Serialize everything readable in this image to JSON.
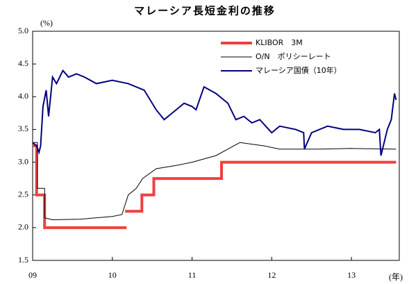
{
  "chart_data": {
    "type": "line",
    "title": "マレーシア長短金利の推移",
    "y_label": "(%)",
    "x_label": "(年)",
    "xlim": [
      2009,
      2013.6
    ],
    "xticks": [
      {
        "value": 2009,
        "label": "09"
      },
      {
        "value": 2010,
        "label": "10"
      },
      {
        "value": 2011,
        "label": "11"
      },
      {
        "value": 2012,
        "label": "12"
      },
      {
        "value": 2013,
        "label": "13"
      }
    ],
    "ylim": [
      1.5,
      5.0
    ],
    "yticks": [
      1.5,
      {
        "value": 2.0,
        "label": "2.0"
      },
      2.5,
      {
        "value": 3.0,
        "label": "3.0"
      },
      3.5,
      {
        "value": 4.0,
        "label": "4.0"
      },
      4.5,
      {
        "value": 5.0,
        "label": "5.0"
      }
    ],
    "legend": "upper right",
    "series": [
      {
        "name": "KLIBOR　3M",
        "color": "#f04040",
        "x": [
          2009.0,
          2009.05,
          2009.05,
          2009.15,
          2009.15,
          2010.18,
          null,
          2010.16,
          2010.37,
          2010.37,
          2010.52,
          2010.52,
          2011.37,
          2011.37,
          2013.56
        ],
        "values": [
          3.25,
          3.25,
          2.5,
          2.5,
          2.0,
          2.0,
          null,
          2.25,
          2.25,
          2.5,
          2.5,
          2.75,
          2.75,
          3.0,
          3.0
        ]
      },
      {
        "name": "O/N　ポリシーレート",
        "color": "#000000",
        "x": [
          2009.0,
          2009.06,
          2009.06,
          2009.15,
          2009.15,
          2009.25,
          2009.6,
          2010.0,
          2010.12,
          2010.2,
          2010.3,
          2010.38,
          2010.55,
          2010.8,
          2011.0,
          2011.3,
          2011.45,
          2011.6,
          2011.9,
          2012.1,
          2012.6,
          2013.0,
          2013.56
        ],
        "values": [
          3.3,
          3.3,
          2.6,
          2.6,
          2.15,
          2.12,
          2.13,
          2.17,
          2.2,
          2.5,
          2.6,
          2.75,
          2.9,
          2.95,
          3.0,
          3.1,
          3.2,
          3.3,
          3.25,
          3.2,
          3.2,
          3.21,
          3.2
        ]
      },
      {
        "name": "マレーシア国債（10年）",
        "color": "#000080",
        "x": [
          2009.0,
          2009.05,
          2009.08,
          2009.1,
          2009.13,
          2009.17,
          2009.2,
          2009.25,
          2009.3,
          2009.38,
          2009.45,
          2009.55,
          2009.65,
          2009.8,
          2010.0,
          2010.2,
          2010.4,
          2010.55,
          2010.65,
          2010.75,
          2010.9,
          2011.0,
          2011.05,
          2011.15,
          2011.3,
          2011.45,
          2011.55,
          2011.65,
          2011.75,
          2011.85,
          2012.0,
          2012.1,
          2012.3,
          2012.4,
          2012.41,
          2012.5,
          2012.7,
          2012.9,
          2013.1,
          2013.3,
          2013.35,
          2013.37,
          2013.45,
          2013.5,
          2013.54,
          2013.56
        ],
        "values": [
          3.3,
          3.25,
          3.15,
          3.25,
          3.85,
          4.1,
          3.7,
          4.3,
          4.2,
          4.4,
          4.3,
          4.35,
          4.3,
          4.2,
          4.25,
          4.2,
          4.1,
          3.8,
          3.65,
          3.75,
          3.9,
          3.85,
          3.8,
          4.15,
          4.05,
          3.9,
          3.65,
          3.7,
          3.6,
          3.65,
          3.45,
          3.55,
          3.5,
          3.45,
          3.2,
          3.45,
          3.55,
          3.5,
          3.5,
          3.45,
          3.5,
          3.1,
          3.5,
          3.65,
          4.05,
          3.95
        ]
      }
    ]
  }
}
